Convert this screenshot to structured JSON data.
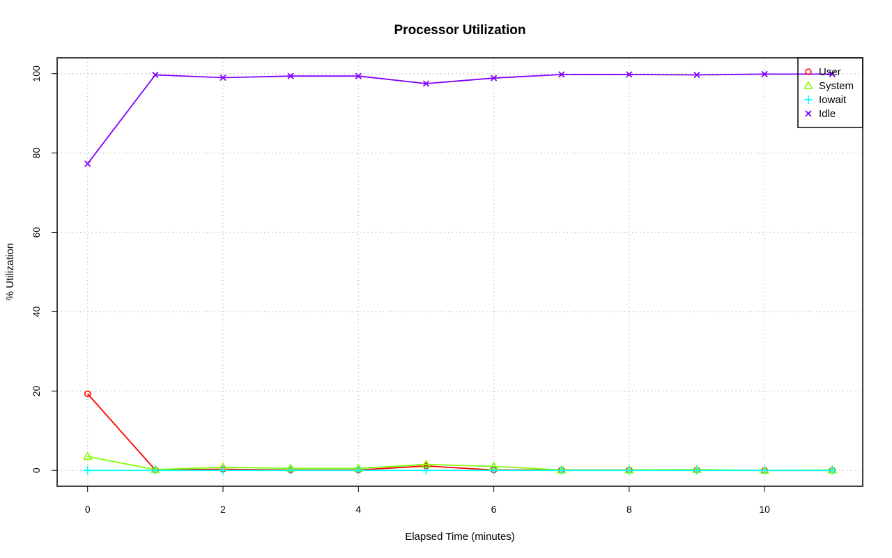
{
  "chart_data": {
    "type": "line",
    "title": "Processor Utilization",
    "xlabel": "Elapsed Time (minutes)",
    "ylabel": "% Utilization",
    "xlim": [
      -0.45,
      11.45
    ],
    "ylim": [
      -4,
      104
    ],
    "x_ticks": [
      0,
      2,
      4,
      6,
      8,
      10
    ],
    "y_ticks": [
      0,
      20,
      40,
      60,
      80,
      100
    ],
    "grid": true,
    "legend_position": "top-right",
    "x": [
      0,
      1,
      2,
      3,
      4,
      5,
      6,
      7,
      8,
      9,
      10,
      11
    ],
    "series": [
      {
        "name": "User",
        "color": "#ff0000",
        "marker": "circle",
        "values": [
          19.3,
          0.1,
          0.3,
          0.1,
          0.1,
          1.1,
          0.1,
          0.1,
          0.1,
          0.1,
          0.0,
          0.0
        ]
      },
      {
        "name": "System",
        "color": "#80ff00",
        "marker": "triangle",
        "values": [
          3.5,
          0.2,
          0.8,
          0.5,
          0.5,
          1.5,
          1.0,
          0.1,
          0.1,
          0.2,
          0.0,
          0.1
        ]
      },
      {
        "name": "Iowait",
        "color": "#00ffff",
        "marker": "plus",
        "values": [
          0.0,
          0.0,
          0.0,
          0.0,
          0.0,
          0.0,
          0.0,
          0.0,
          0.0,
          0.0,
          0.0,
          0.0
        ]
      },
      {
        "name": "Idle",
        "color": "#8000ff",
        "marker": "cross",
        "values": [
          77.3,
          99.7,
          99.0,
          99.4,
          99.4,
          97.5,
          98.9,
          99.8,
          99.8,
          99.7,
          99.9,
          99.9
        ]
      }
    ]
  }
}
